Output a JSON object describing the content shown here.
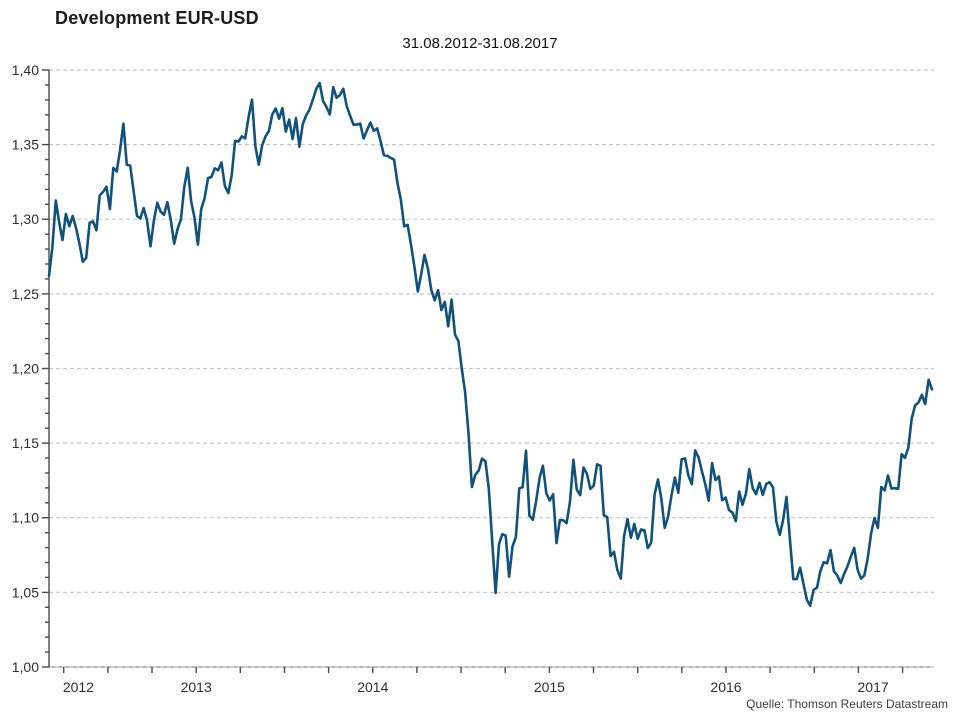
{
  "chart": {
    "title": "Development EUR-USD",
    "subtitle": "31.08.2012-31.08.2017",
    "source": "Quelle: Thomson Reuters Datastream"
  },
  "chart_data": {
    "type": "line",
    "title": "Development EUR-USD",
    "subtitle": "31.08.2012-31.08.2017",
    "source": "Quelle: Thomson Reuters Datastream",
    "xlabel": "",
    "ylabel": "",
    "grid": "horizontal-dashed",
    "legend": "none",
    "date_start": "31.08.2012",
    "date_end": "31.08.2017",
    "frequency": "weekly",
    "y_axis": {
      "min": 1.0,
      "max": 1.4,
      "major_step": 0.05,
      "minor_step": 0.01,
      "tick_values": [
        1.4,
        1.35,
        1.3,
        1.25,
        1.2,
        1.15,
        1.1,
        1.05,
        1.0
      ],
      "tick_labels": [
        "1,40",
        "1,35",
        "1,30",
        "1,25",
        "1,20",
        "1,15",
        "1,10",
        "1,05",
        "1,00"
      ]
    },
    "x_axis": {
      "tick_interval": "quarterly",
      "total_months": 60,
      "years": [
        {
          "label": "2012",
          "center_month": 2
        },
        {
          "label": "2013",
          "center_month": 10
        },
        {
          "label": "2014",
          "center_month": 22
        },
        {
          "label": "2015",
          "center_month": 34
        },
        {
          "label": "2016",
          "center_month": 46
        },
        {
          "label": "2017",
          "center_month": 56
        }
      ]
    },
    "colors": {
      "line": "#11527d",
      "grid": "#c7c7c7",
      "axis": "#4a4a4a",
      "baseline": "#9b9b9b",
      "baseline_dash": "#d4d4d4",
      "text": "#2e2e2e"
    },
    "series": [
      {
        "name": "EUR-USD",
        "values": [
          1.262,
          1.2815,
          1.3125,
          1.2982,
          1.286,
          1.3035,
          1.2953,
          1.3022,
          1.2941,
          1.2839,
          1.2715,
          1.2741,
          1.2976,
          1.2986,
          1.2926,
          1.3159,
          1.3183,
          1.3218,
          1.3069,
          1.3344,
          1.332,
          1.3459,
          1.364,
          1.3364,
          1.336,
          1.319,
          1.3022,
          1.3006,
          1.3075,
          1.2989,
          1.2819,
          1.2992,
          1.311,
          1.3052,
          1.303,
          1.3114,
          1.2994,
          1.2836,
          1.2936,
          1.2999,
          1.3217,
          1.3345,
          1.3122,
          1.301,
          1.283,
          1.3068,
          1.3141,
          1.3276,
          1.3283,
          1.3341,
          1.3328,
          1.338,
          1.3222,
          1.3175,
          1.3295,
          1.3525,
          1.3521,
          1.3555,
          1.3542,
          1.3686,
          1.3802,
          1.3488,
          1.3366,
          1.3494,
          1.3555,
          1.3591,
          1.3703,
          1.3742,
          1.3674,
          1.3744,
          1.3588,
          1.3668,
          1.3538,
          1.3678,
          1.3486,
          1.3635,
          1.3695,
          1.3735,
          1.3802,
          1.3875,
          1.3912,
          1.3793,
          1.3753,
          1.3702,
          1.3885,
          1.3814,
          1.3833,
          1.3874,
          1.3759,
          1.3694,
          1.3634,
          1.3634,
          1.3641,
          1.3541,
          1.3597,
          1.3648,
          1.3592,
          1.3609,
          1.3525,
          1.343,
          1.3425,
          1.3411,
          1.3399,
          1.3241,
          1.3133,
          1.2953,
          1.2963,
          1.283,
          1.2683,
          1.2516,
          1.2628,
          1.2761,
          1.267,
          1.2526,
          1.2456,
          1.2525,
          1.2392,
          1.2446,
          1.2283,
          1.2462,
          1.2227,
          1.2184,
          1.2002,
          1.1842,
          1.1567,
          1.1206,
          1.1288,
          1.1316,
          1.1396,
          1.1379,
          1.1196,
          1.0843,
          1.0496,
          1.0823,
          1.089,
          1.088,
          1.0605,
          1.0808,
          1.0871,
          1.1197,
          1.1205,
          1.1449,
          1.1014,
          1.0986,
          1.1115,
          1.1268,
          1.1349,
          1.1166,
          1.1115,
          1.1158,
          1.083,
          1.0985,
          1.0983,
          1.0964,
          1.1107,
          1.1388,
          1.1187,
          1.1152,
          1.1336,
          1.1296,
          1.1193,
          1.1215,
          1.1358,
          1.1348,
          1.1017,
          1.1005,
          1.0743,
          1.0772,
          1.0648,
          1.0593,
          1.088,
          1.0991,
          1.0866,
          1.0959,
          1.0859,
          1.0921,
          1.0916,
          1.0797,
          1.0833,
          1.1157,
          1.1256,
          1.113,
          1.0932,
          1.1008,
          1.1151,
          1.127,
          1.1167,
          1.1391,
          1.1398,
          1.1283,
          1.1225,
          1.1451,
          1.1403,
          1.1312,
          1.1224,
          1.1114,
          1.1366,
          1.1252,
          1.1277,
          1.1117,
          1.1136,
          1.1051,
          1.1035,
          1.0977,
          1.1176,
          1.1087,
          1.1162,
          1.1325,
          1.1198,
          1.1157,
          1.1234,
          1.1153,
          1.1226,
          1.1238,
          1.1203,
          1.0972,
          1.0886,
          1.0985,
          1.114,
          1.0858,
          1.0588,
          1.0589,
          1.0666,
          1.0559,
          1.0452,
          1.0411,
          1.0517,
          1.0532,
          1.0643,
          1.0702,
          1.0695,
          1.0783,
          1.0642,
          1.0613,
          1.0563,
          1.0622,
          1.0673,
          1.0739,
          1.0798,
          1.0652,
          1.0592,
          1.0614,
          1.0727,
          1.0895,
          1.0998,
          1.0932,
          1.1206,
          1.1183,
          1.1283,
          1.1196,
          1.1198,
          1.1194,
          1.1426,
          1.1401,
          1.1469,
          1.1664,
          1.1752,
          1.1773,
          1.1823,
          1.1762,
          1.1924,
          1.186
        ]
      }
    ]
  }
}
